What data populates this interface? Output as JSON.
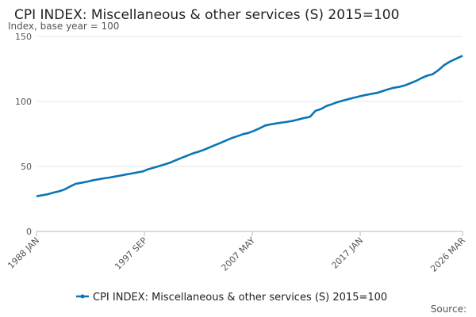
{
  "chart_data": {
    "type": "line",
    "title": "CPI INDEX: Miscellaneous & other services (S) 2015=100",
    "y_label": "Index, base year = 100",
    "source": "Source:",
    "x": [
      "1988-01",
      "1988-07",
      "1989-01",
      "1989-07",
      "1990-01",
      "1990-07",
      "1991-01",
      "1991-07",
      "1992-01",
      "1992-07",
      "1993-01",
      "1993-07",
      "1994-01",
      "1994-07",
      "1995-01",
      "1995-07",
      "1996-01",
      "1996-07",
      "1997-01",
      "1997-07",
      "1998-01",
      "1998-07",
      "1999-01",
      "1999-07",
      "2000-01",
      "2000-07",
      "2001-01",
      "2001-07",
      "2002-01",
      "2002-07",
      "2003-01",
      "2003-07",
      "2004-01",
      "2004-07",
      "2005-01",
      "2005-07",
      "2006-01",
      "2006-07",
      "2007-01",
      "2007-07",
      "2008-01",
      "2008-07",
      "2009-01",
      "2009-07",
      "2010-01",
      "2010-07",
      "2011-01",
      "2011-07",
      "2012-01",
      "2012-07",
      "2013-01",
      "2013-07",
      "2014-01",
      "2014-07",
      "2015-01",
      "2015-07",
      "2016-01",
      "2016-07",
      "2017-01",
      "2017-07",
      "2018-01",
      "2018-07",
      "2019-01",
      "2019-07",
      "2020-01",
      "2020-07",
      "2021-01",
      "2021-07",
      "2022-01",
      "2022-07",
      "2023-01",
      "2023-07",
      "2024-01",
      "2024-07",
      "2025-01",
      "2025-07",
      "2026-01",
      "2026-03"
    ],
    "series": [
      {
        "name": "CPI INDEX: Miscellaneous & other services (S) 2015=100",
        "color": "#0a75b5",
        "values": [
          27.0,
          27.8,
          28.6,
          29.8,
          30.8,
          32.2,
          34.5,
          36.6,
          37.4,
          38.2,
          39.2,
          40.0,
          40.8,
          41.4,
          42.2,
          42.9,
          43.8,
          44.5,
          45.3,
          46.1,
          47.8,
          49.0,
          50.3,
          51.6,
          53.0,
          54.8,
          56.6,
          58.3,
          60.0,
          61.3,
          62.8,
          64.6,
          66.4,
          68.2,
          70.0,
          71.8,
          73.3,
          74.8,
          75.8,
          77.5,
          79.4,
          81.5,
          82.4,
          83.1,
          83.8,
          84.4,
          85.1,
          86.2,
          87.3,
          88.1,
          92.8,
          94.2,
          96.6,
          98.0,
          99.6,
          100.8,
          101.9,
          103.0,
          104.0,
          105.0,
          105.8,
          106.6,
          107.9,
          109.3,
          110.5,
          111.2,
          112.3,
          114.0,
          115.8,
          118.0,
          119.8,
          121.0,
          124.0,
          127.8,
          130.5,
          132.5,
          134.5,
          135.2
        ]
      }
    ],
    "xlim": [
      "1988-01",
      "2026-03"
    ],
    "xticks": [
      {
        "value": "1988-01",
        "label": "1988 JAN"
      },
      {
        "value": "1997-09",
        "label": "1997 SEP"
      },
      {
        "value": "2007-05",
        "label": "2007 MAY"
      },
      {
        "value": "2017-01",
        "label": "2017 JAN"
      },
      {
        "value": "2026-03",
        "label": "2026 MAR"
      }
    ],
    "ylim": [
      0,
      150
    ],
    "yticks": [
      0,
      50,
      100,
      150
    ],
    "grid": true
  }
}
